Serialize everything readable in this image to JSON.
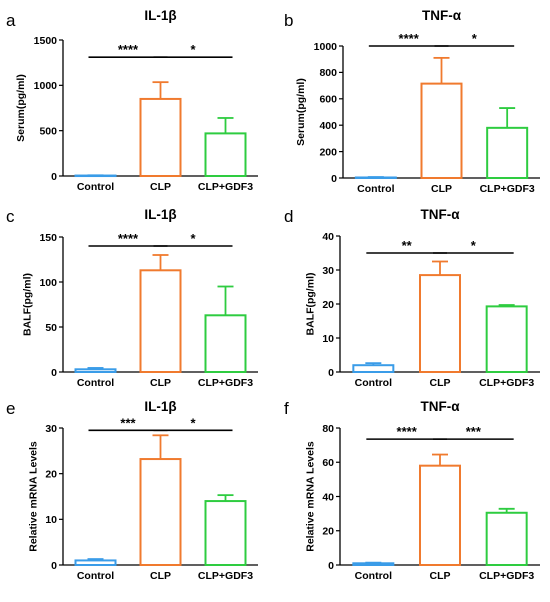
{
  "colors": {
    "Control": "#3a9ce8",
    "CLP": "#f07a2e",
    "CLP+GDF3": "#2ecc40",
    "axis": "#000000"
  },
  "chart_data": [
    {
      "panel": "a",
      "type": "bar",
      "title": "IL-1β",
      "xlabel": "",
      "ylabel": "Serum(pg/ml)",
      "ylim": [
        0,
        1500
      ],
      "yticks": [
        0,
        500,
        1000,
        1500
      ],
      "categories": [
        "Control",
        "CLP",
        "CLP+GDF3"
      ],
      "values": [
        5,
        850,
        470
      ],
      "errors": [
        3,
        185,
        170
      ],
      "significance": [
        {
          "from": 0,
          "to": 1,
          "label": "****",
          "at": 1310
        },
        {
          "from": 1,
          "to": 2,
          "label": "*",
          "at": 1310
        }
      ]
    },
    {
      "panel": "b",
      "type": "bar",
      "title": "TNF-α",
      "xlabel": "",
      "ylabel": "Serum(pg/ml)",
      "ylim": [
        0,
        1000
      ],
      "yticks": [
        0,
        200,
        400,
        600,
        800,
        1000
      ],
      "categories": [
        "Control",
        "CLP",
        "CLP+GDF3"
      ],
      "values": [
        4,
        715,
        380
      ],
      "errors": [
        3,
        195,
        150
      ],
      "significance": [
        {
          "from": 0,
          "to": 1,
          "label": "****",
          "at": 1000
        },
        {
          "from": 1,
          "to": 2,
          "label": "*",
          "at": 1000
        }
      ]
    },
    {
      "panel": "c",
      "type": "bar",
      "title": "IL-1β",
      "xlabel": "",
      "ylabel": "BALF(pg/ml)",
      "ylim": [
        0,
        150
      ],
      "yticks": [
        0,
        50,
        100,
        150
      ],
      "categories": [
        "Control",
        "CLP",
        "CLP+GDF3"
      ],
      "values": [
        3,
        113,
        63
      ],
      "errors": [
        1.5,
        17,
        32
      ],
      "significance": [
        {
          "from": 0,
          "to": 1,
          "label": "****",
          "at": 140
        },
        {
          "from": 1,
          "to": 2,
          "label": "*",
          "at": 140
        }
      ]
    },
    {
      "panel": "d",
      "type": "bar",
      "title": "TNF-α",
      "xlabel": "",
      "ylabel": "BALF(pg/ml)",
      "ylim": [
        0,
        40
      ],
      "yticks": [
        0,
        10,
        20,
        30,
        40
      ],
      "categories": [
        "Control",
        "CLP",
        "CLP+GDF3"
      ],
      "values": [
        2,
        28.5,
        19.3
      ],
      "errors": [
        0.6,
        4,
        0.4
      ],
      "significance": [
        {
          "from": 0,
          "to": 1,
          "label": "**",
          "at": 35
        },
        {
          "from": 1,
          "to": 2,
          "label": "*",
          "at": 35
        }
      ]
    },
    {
      "panel": "e",
      "type": "bar",
      "title": "IL-1β",
      "xlabel": "",
      "ylabel": "Relative mRNA Levels",
      "ylim": [
        0,
        30
      ],
      "yticks": [
        0,
        10,
        20,
        30
      ],
      "categories": [
        "Control",
        "CLP",
        "CLP+GDF3"
      ],
      "values": [
        1,
        23.2,
        14
      ],
      "errors": [
        0.3,
        5.2,
        1.3
      ],
      "significance": [
        {
          "from": 0,
          "to": 1,
          "label": "***",
          "at": 29.5
        },
        {
          "from": 1,
          "to": 2,
          "label": "*",
          "at": 29.5
        }
      ]
    },
    {
      "panel": "f",
      "type": "bar",
      "title": "TNF-α",
      "xlabel": "",
      "ylabel": "Relative mRNA Levels",
      "ylim": [
        0,
        80
      ],
      "yticks": [
        0,
        20,
        40,
        60,
        80
      ],
      "categories": [
        "Control",
        "CLP",
        "CLP+GDF3"
      ],
      "values": [
        1,
        58,
        30.5
      ],
      "errors": [
        0.4,
        6.5,
        2.3
      ],
      "significance": [
        {
          "from": 0,
          "to": 1,
          "label": "****",
          "at": 73.5
        },
        {
          "from": 1,
          "to": 2,
          "label": "***",
          "at": 73.5
        }
      ]
    }
  ]
}
